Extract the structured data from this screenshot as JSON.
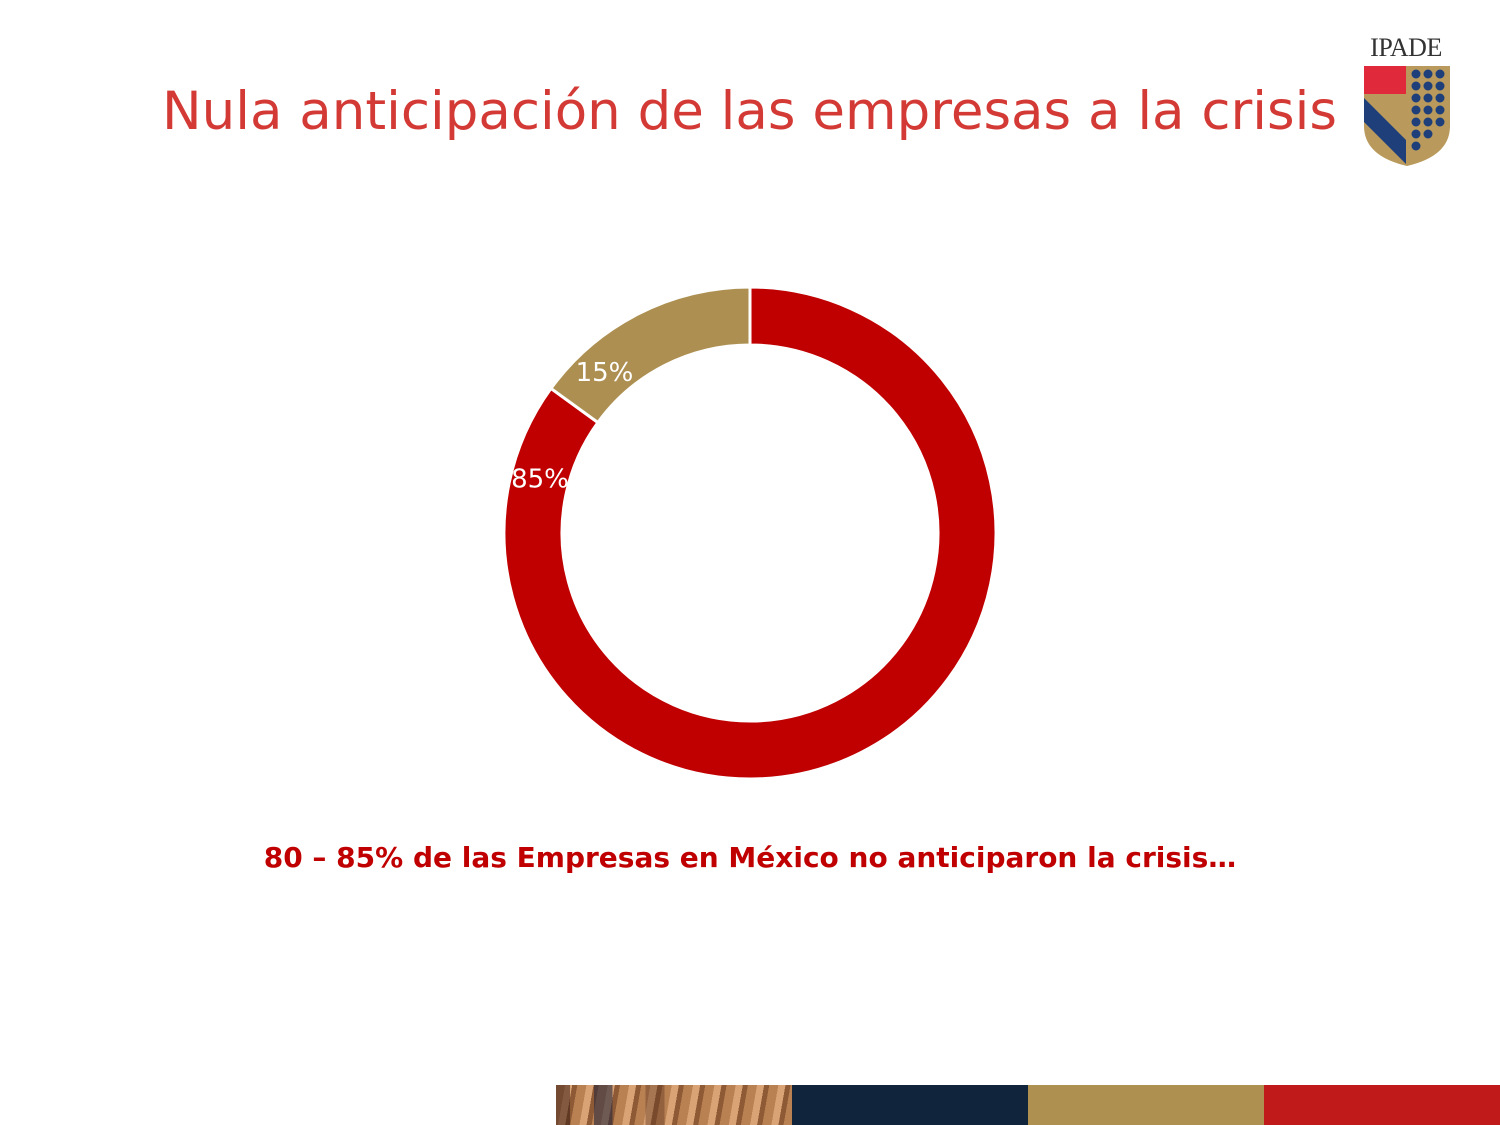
{
  "slide": {
    "title": "Nula anticipación de las empresas a la crisis",
    "caption": "80 – 85% de las Empresas en México no anticiparon la crisis…"
  },
  "logo": {
    "text": "IPADE",
    "icon": "ipade-shield-icon"
  },
  "chart_data": {
    "type": "pie",
    "style": "donut",
    "title": "",
    "slices": [
      {
        "value": 85,
        "label": "85%",
        "color": "#c00000"
      },
      {
        "value": 15,
        "label": "15%",
        "color": "#ad9051"
      }
    ],
    "legend": "none"
  },
  "colors": {
    "title": "#d43a35",
    "caption": "#c00000",
    "footer_bands": [
      "#10253c",
      "#ae9150",
      "#c01a1a"
    ]
  }
}
